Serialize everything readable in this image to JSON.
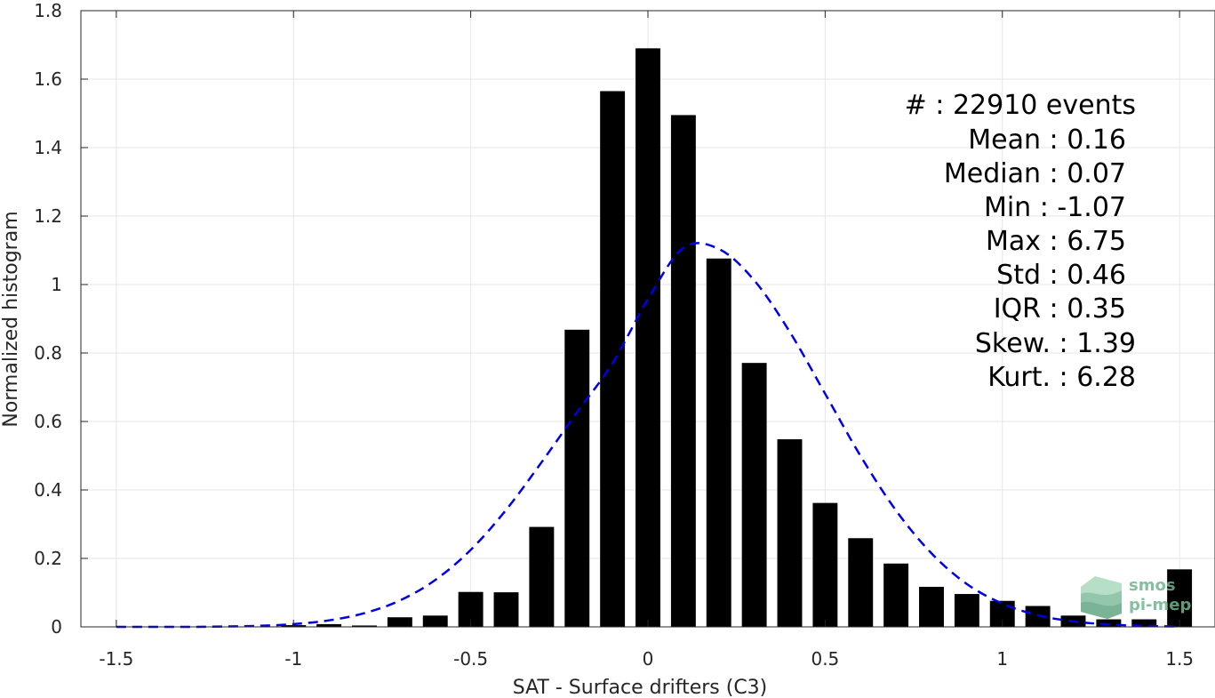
{
  "chart_data": {
    "type": "bar",
    "xlabel": "SAT - Surface drifters (C3)",
    "ylabel": "Normalized histogram",
    "xlim": [
      -1.6,
      1.6
    ],
    "ylim": [
      0,
      1.8
    ],
    "xticks": [
      -1.5,
      -1,
      -0.5,
      0,
      0.5,
      1,
      1.5
    ],
    "xtick_labels": [
      "-1.5",
      "-1",
      "-0.5",
      "0",
      "0.5",
      "1",
      "1.5"
    ],
    "yticks": [
      0,
      0.2,
      0.4,
      0.6,
      0.8,
      1,
      1.2,
      1.4,
      1.6,
      1.8
    ],
    "ytick_labels": [
      "0",
      "0.2",
      "0.4",
      "0.6",
      "0.8",
      "1",
      "1.2",
      "1.4",
      "1.6",
      "1.8"
    ],
    "grid": true,
    "bar_color": "#000000",
    "bar_width": 0.07,
    "bars": {
      "x": [
        -1.0,
        -0.9,
        -0.8,
        -0.7,
        -0.6,
        -0.5,
        -0.4,
        -0.3,
        -0.2,
        -0.1,
        0.0,
        0.1,
        0.2,
        0.3,
        0.4,
        0.5,
        0.6,
        0.7,
        0.8,
        0.9,
        1.0,
        1.1,
        1.2,
        1.3,
        1.4,
        1.5
      ],
      "values": [
        0.005,
        0.008,
        0.004,
        0.028,
        0.033,
        0.102,
        0.101,
        0.292,
        0.868,
        1.565,
        1.69,
        1.495,
        1.076,
        0.771,
        0.548,
        0.362,
        0.259,
        0.185,
        0.117,
        0.096,
        0.076,
        0.061,
        0.033,
        0.022,
        0.022,
        0.168
      ]
    },
    "fit_curve": {
      "style": "dashed",
      "color": "#0000e6",
      "x": [
        -1.5,
        -1.4,
        -1.3,
        -1.2,
        -1.1,
        -1.0,
        -0.9,
        -0.8,
        -0.7,
        -0.6,
        -0.5,
        -0.4,
        -0.3,
        -0.2,
        -0.1,
        0.0,
        0.1,
        0.2,
        0.3,
        0.4,
        0.5,
        0.6,
        0.7,
        0.8,
        0.9,
        1.0,
        1.1,
        1.2,
        1.3,
        1.4,
        1.5
      ],
      "y": [
        0.0,
        0.0,
        0.0,
        0.001,
        0.003,
        0.008,
        0.019,
        0.04,
        0.077,
        0.137,
        0.225,
        0.342,
        0.481,
        0.627,
        0.77,
        0.957,
        1.107,
        1.104,
        1.012,
        0.862,
        0.681,
        0.499,
        0.34,
        0.215,
        0.125,
        0.068,
        0.034,
        0.016,
        0.007,
        0.003,
        0.001
      ]
    }
  },
  "stats": [
    "#  : 22910 events",
    "Mean : 0.16",
    "Median : 0.07",
    "Min : -1.07",
    "Max : 6.75",
    "Std : 0.46",
    "IQR : 0.35",
    "Skew. : 1.39",
    "Kurt. : 6.28"
  ],
  "logo": {
    "line1": "smos",
    "line2": "pi-mep",
    "color": "#6fb58f"
  }
}
